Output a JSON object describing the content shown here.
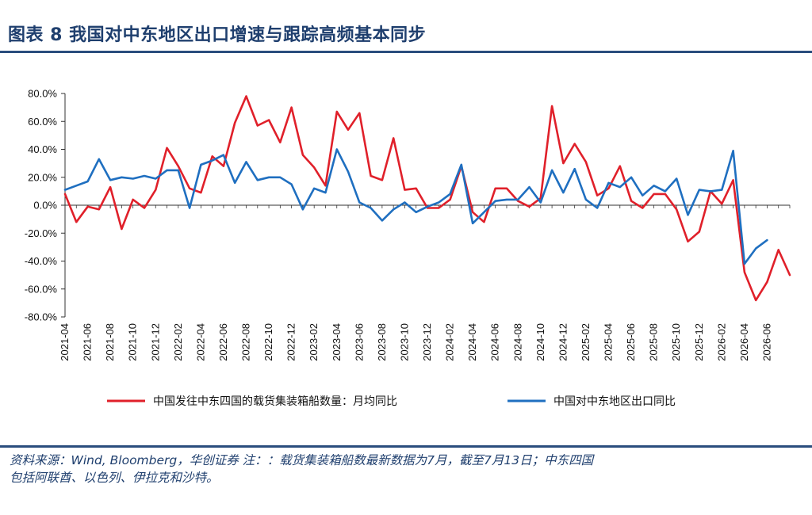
{
  "header": {
    "title": "图表 8 我国对中东地区出口增速与跟踪高频基本同步"
  },
  "footer": {
    "source_line1": "资料来源：Wind, Bloomberg，华创证券 注：：载货集装箱船数最新数据为7月，截至7月13日；中东四国",
    "source_line2": "包括阿联酋、以色列、伊拉克和沙特。"
  },
  "chart_data": {
    "type": "line",
    "ylim": [
      -80,
      80
    ],
    "yticks": [
      80,
      60,
      40,
      20,
      0,
      -20,
      -40,
      -60,
      -80
    ],
    "ytick_labels": [
      "80.0%",
      "60.0%",
      "40.0%",
      "20.0%",
      "0.0%",
      "-20.0%",
      "-40.0%",
      "-60.0%",
      "-80.0%"
    ],
    "x_start": "2021-04",
    "x_labels": [
      "2021-04",
      "2021-06",
      "2021-08",
      "2021-10",
      "2021-12",
      "2022-02",
      "2022-04",
      "2022-06",
      "2022-08",
      "2022-10",
      "2022-12",
      "2023-02",
      "2023-04",
      "2023-06",
      "2023-08",
      "2023-10",
      "2023-12",
      "2024-02",
      "2024-04",
      "2024-06",
      "2024-08",
      "2024-10",
      "2024-12",
      "2025-02",
      "2025-04",
      "2025-06",
      "2025-08",
      "2025-10",
      "2025-12",
      "2026-02",
      "2026-04",
      "2026-06"
    ],
    "legend_position": "bottom",
    "grid": false,
    "series": [
      {
        "name": "中国发往中东四国的载货集装箱船数量：月均同比",
        "color": "#e0202a",
        "values": [
          8,
          -12,
          -1,
          -3,
          13,
          -17,
          4,
          -2,
          11,
          41,
          28,
          12,
          9,
          35,
          28,
          59,
          78,
          57,
          61,
          45,
          70,
          36,
          27,
          14,
          67,
          54,
          66,
          21,
          18,
          48,
          11,
          12,
          -2,
          -2,
          4,
          28,
          -5,
          -12,
          12,
          12,
          3,
          -1,
          5,
          71,
          30,
          44,
          31,
          7,
          12,
          28,
          3,
          -2,
          8,
          8,
          -3,
          -26,
          -19,
          10,
          1,
          18,
          -48,
          -68,
          -55,
          -32,
          -50
        ]
      },
      {
        "name": "中国对中东地区出口同比",
        "color": "#1f6fc0",
        "values": [
          11,
          14,
          17,
          33,
          18,
          20,
          19,
          21,
          19,
          25,
          25,
          -2,
          29,
          32,
          36,
          16,
          31,
          18,
          20,
          20,
          15,
          -3,
          12,
          9,
          40,
          24,
          2,
          -2,
          -11,
          -3,
          2,
          -5,
          -1,
          2,
          8,
          29,
          -13,
          -5,
          3,
          4,
          4,
          13,
          2,
          25,
          9,
          26,
          4,
          -2,
          16,
          13,
          20,
          7,
          14,
          10,
          19,
          -7,
          11,
          10,
          11,
          39,
          -42,
          -31,
          -25
        ]
      }
    ]
  }
}
